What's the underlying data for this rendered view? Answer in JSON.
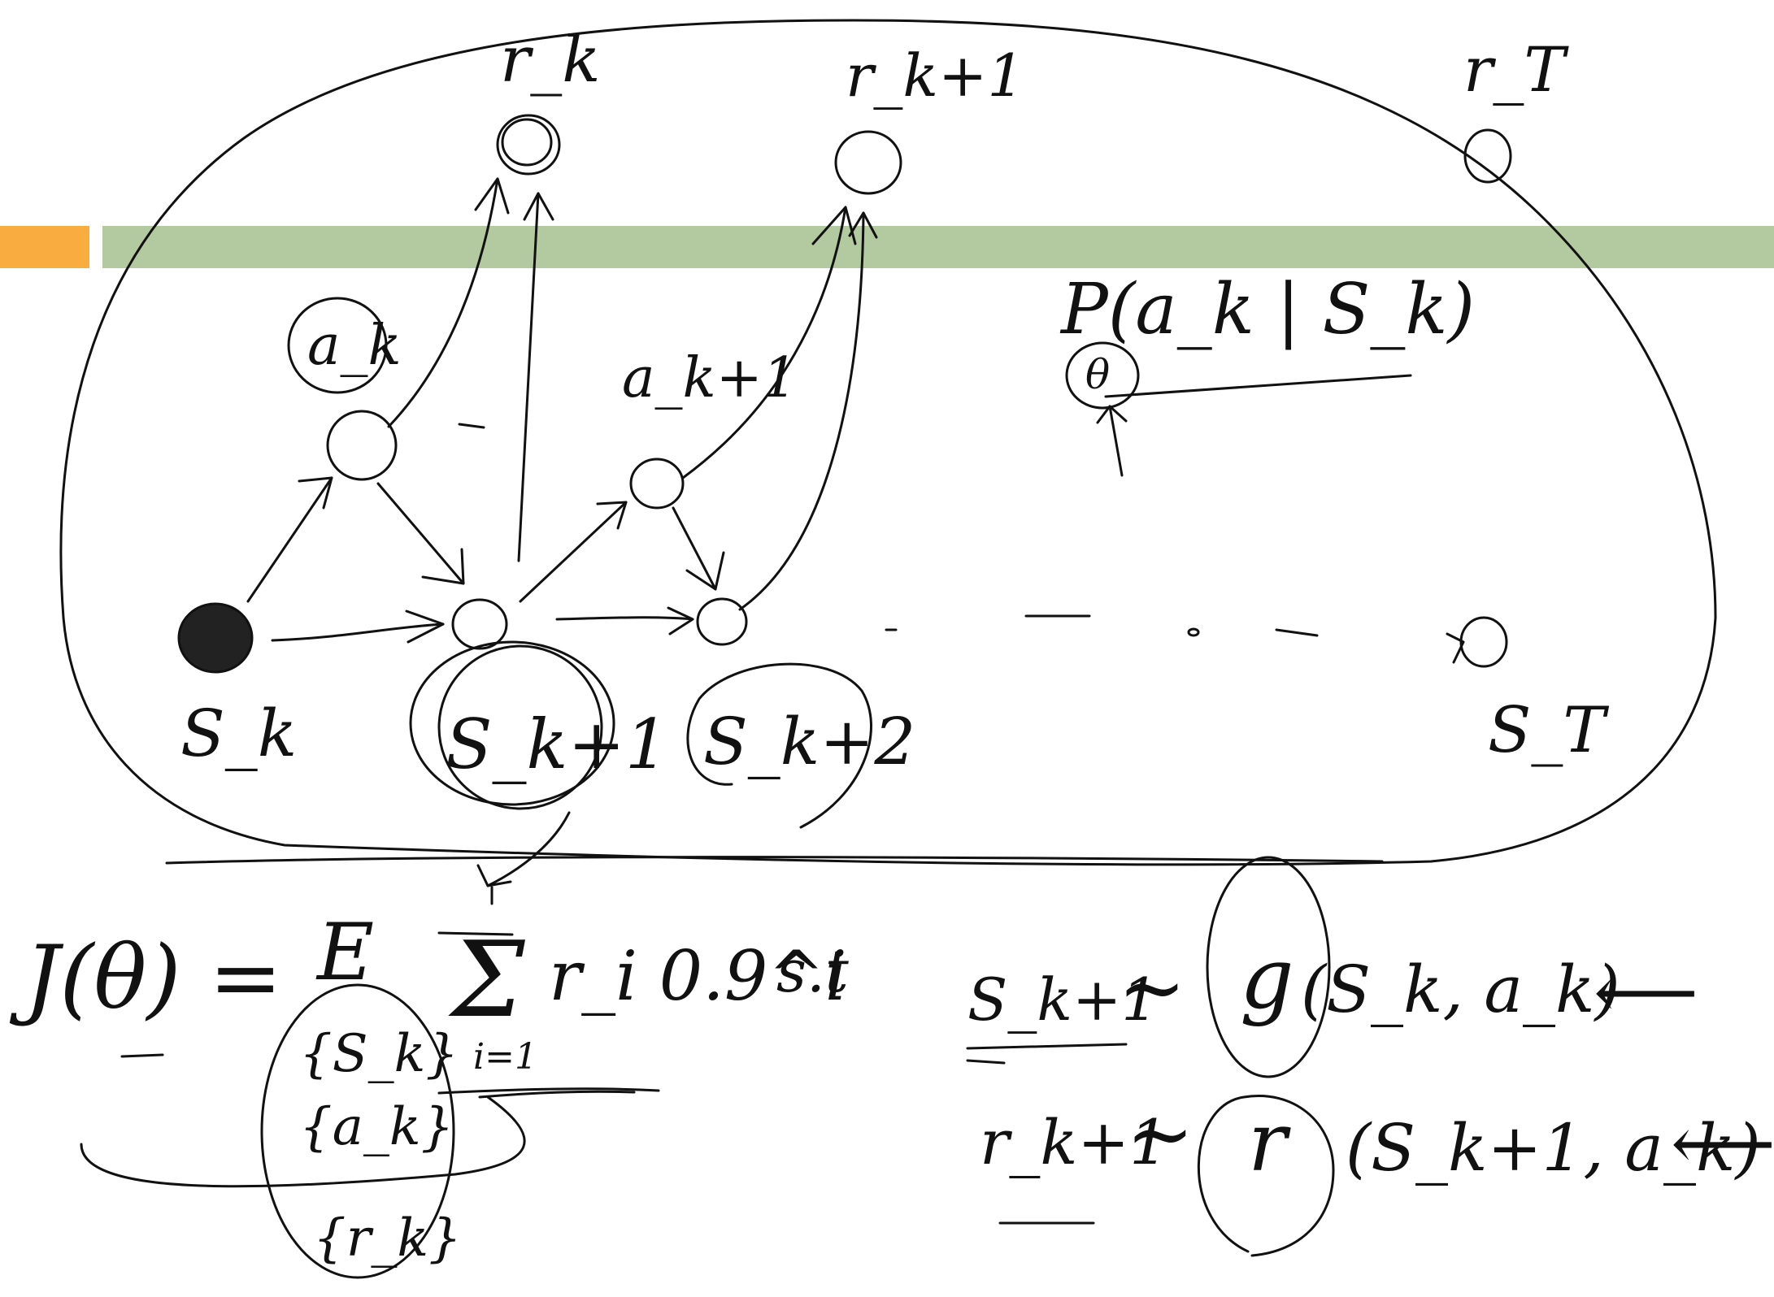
{
  "colors": {
    "banner_orange": "#f9ac3f",
    "banner_green": "#b3c9a0",
    "ink": "#111111",
    "background": "#ffffff"
  },
  "reward_nodes": {
    "r_k": "r_k",
    "r_k1": "r_k+1",
    "r_T": "r_T"
  },
  "action_nodes": {
    "a_k": "a_k",
    "a_k1": "a_k+1"
  },
  "state_nodes": {
    "s_k": "S_k",
    "s_k1": "S_k+1",
    "s_k2": "S_k+2",
    "s_T": "S_T"
  },
  "policy": {
    "expression": "P(a_k | S_k)",
    "parameter": "θ"
  },
  "objective": {
    "lhs": "J(θ) =",
    "expectation": "E",
    "sum_symbol": "Σ",
    "summand": "r_i 0.9^i",
    "lower_limit": "i=1",
    "st": "s.t",
    "conditions": [
      "{S_k}",
      "{a_k}",
      "{r_k}"
    ]
  },
  "constraints": {
    "transition": {
      "lhs": "S_k+1",
      "tilde": "~",
      "func": "g",
      "args": "(S_k, a_k)",
      "arrow": "⟵"
    },
    "reward": {
      "lhs": "r_k+1",
      "tilde": "~",
      "func": "r",
      "args": "(S_k+1, a_k)",
      "arrow": "⟵"
    }
  }
}
